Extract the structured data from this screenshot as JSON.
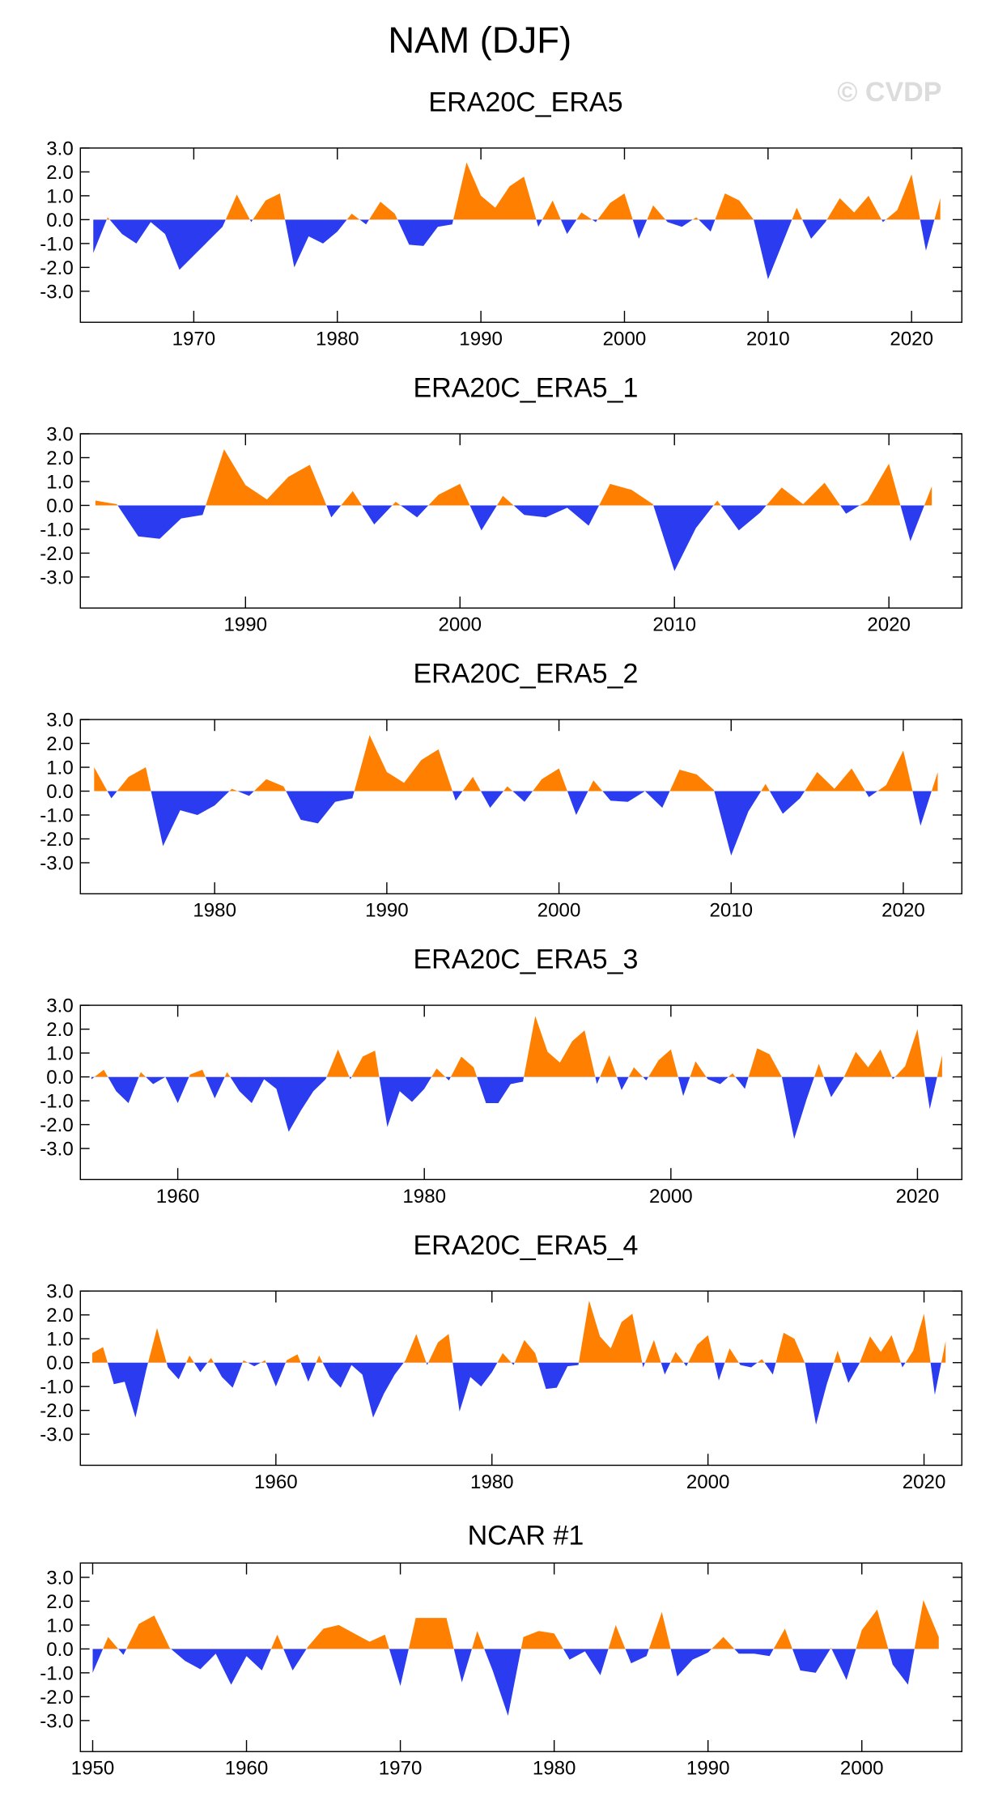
{
  "title": "NAM (DJF)",
  "watermark": "© CVDP",
  "chart_data": [
    {
      "type": "area",
      "title": "ERA20C_ERA5",
      "above_color": "#ff8000",
      "below_color": "#2b3cf0",
      "x": [
        1963,
        1964,
        1965,
        1966,
        1967,
        1968,
        1969,
        1970,
        1971,
        1972,
        1973,
        1974,
        1975,
        1976,
        1977,
        1978,
        1979,
        1980,
        1981,
        1982,
        1983,
        1984,
        1985,
        1986,
        1987,
        1988,
        1989,
        1990,
        1991,
        1992,
        1993,
        1994,
        1995,
        1996,
        1997,
        1998,
        1999,
        2000,
        2001,
        2002,
        2003,
        2004,
        2005,
        2006,
        2007,
        2008,
        2009,
        2010,
        2011,
        2012,
        2013,
        2014,
        2015,
        2016,
        2017,
        2018,
        2019,
        2020,
        2021,
        2022
      ],
      "values": [
        -1.4,
        0.1,
        -0.6,
        -1.0,
        -0.1,
        -0.6,
        -2.1,
        -1.5,
        -0.9,
        -0.3,
        1.05,
        -0.1,
        0.8,
        1.1,
        -2.0,
        -0.7,
        -1.0,
        -0.5,
        0.25,
        -0.2,
        0.75,
        0.25,
        -1.05,
        -1.1,
        -0.3,
        -0.2,
        2.4,
        1.0,
        0.5,
        1.4,
        1.8,
        -0.3,
        0.8,
        -0.6,
        0.3,
        -0.1,
        0.7,
        1.1,
        -0.8,
        0.6,
        -0.1,
        -0.3,
        0.1,
        -0.5,
        1.1,
        0.8,
        0.0,
        -2.5,
        -1.0,
        0.5,
        -0.8,
        -0.1,
        0.9,
        0.3,
        1.0,
        -0.1,
        0.4,
        1.9,
        -1.3,
        0.9
      ],
      "xlim": [
        1962.1,
        2023.5
      ],
      "xticks": [
        1970,
        1980,
        1990,
        2000,
        2010,
        2020
      ],
      "ylim": [
        -4.3,
        3.0
      ],
      "yticks": [
        {
          "value": 3,
          "label": "3.0"
        },
        {
          "value": 2,
          "label": "2.0"
        },
        {
          "value": 1,
          "label": "1.0"
        },
        {
          "value": 0,
          "label": "0.0"
        },
        {
          "value": -1,
          "label": "-1.0"
        },
        {
          "value": -2,
          "label": "-2.0"
        },
        {
          "value": -3,
          "label": "-3.0"
        }
      ]
    },
    {
      "type": "area",
      "title": "ERA20C_ERA5_1",
      "above_color": "#ff8000",
      "below_color": "#2b3cf0",
      "x": [
        1983,
        1984,
        1985,
        1986,
        1987,
        1988,
        1989,
        1990,
        1991,
        1992,
        1993,
        1994,
        1995,
        1996,
        1997,
        1998,
        1999,
        2000,
        2001,
        2002,
        2003,
        2004,
        2005,
        2006,
        2007,
        2008,
        2009,
        2010,
        2011,
        2012,
        2013,
        2014,
        2015,
        2016,
        2017,
        2018,
        2019,
        2020,
        2021,
        2022
      ],
      "values": [
        0.2,
        0.05,
        -1.3,
        -1.4,
        -0.55,
        -0.4,
        2.35,
        0.85,
        0.25,
        1.2,
        1.7,
        -0.5,
        0.6,
        -0.8,
        0.15,
        -0.5,
        0.45,
        0.9,
        -1.05,
        0.4,
        -0.4,
        -0.5,
        -0.1,
        -0.85,
        0.9,
        0.65,
        0.05,
        -2.75,
        -0.95,
        0.2,
        -1.05,
        -0.3,
        0.75,
        0.05,
        0.95,
        -0.35,
        0.2,
        1.75,
        -1.5,
        0.8
      ],
      "xlim": [
        1982.3,
        2023.4
      ],
      "xticks": [
        1990,
        2000,
        2010,
        2020
      ],
      "ylim": [
        -4.3,
        3.0
      ],
      "yticks": [
        {
          "value": 3,
          "label": "3.0"
        },
        {
          "value": 2,
          "label": "2.0"
        },
        {
          "value": 1,
          "label": "1.0"
        },
        {
          "value": 0,
          "label": "0.0"
        },
        {
          "value": -1,
          "label": "-1.0"
        },
        {
          "value": -2,
          "label": "-2.0"
        },
        {
          "value": -3,
          "label": "-3.0"
        }
      ]
    },
    {
      "type": "area",
      "title": "ERA20C_ERA5_2",
      "above_color": "#ff8000",
      "below_color": "#2b3cf0",
      "x": [
        1973,
        1974,
        1975,
        1976,
        1977,
        1978,
        1979,
        1980,
        1981,
        1982,
        1983,
        1984,
        1985,
        1986,
        1987,
        1988,
        1989,
        1990,
        1991,
        1992,
        1993,
        1994,
        1995,
        1996,
        1997,
        1998,
        1999,
        2000,
        2001,
        2002,
        2003,
        2004,
        2005,
        2006,
        2007,
        2008,
        2009,
        2010,
        2011,
        2012,
        2013,
        2014,
        2015,
        2016,
        2017,
        2018,
        2019,
        2020,
        2021,
        2022
      ],
      "values": [
        1.0,
        -0.3,
        0.6,
        1.0,
        -2.3,
        -0.8,
        -1.0,
        -0.6,
        0.1,
        -0.2,
        0.5,
        0.2,
        -1.2,
        -1.35,
        -0.45,
        -0.3,
        2.35,
        0.8,
        0.35,
        1.3,
        1.75,
        -0.4,
        0.6,
        -0.7,
        0.2,
        -0.45,
        0.5,
        0.95,
        -1.0,
        0.45,
        -0.4,
        -0.45,
        0.0,
        -0.7,
        0.9,
        0.7,
        0.05,
        -2.7,
        -0.85,
        0.3,
        -0.95,
        -0.3,
        0.8,
        0.1,
        0.95,
        -0.25,
        0.25,
        1.7,
        -1.45,
        0.8
      ],
      "xlim": [
        1972.2,
        2023.4
      ],
      "xticks": [
        1980,
        1990,
        2000,
        2010,
        2020
      ],
      "ylim": [
        -4.3,
        3.0
      ],
      "yticks": [
        {
          "value": 3,
          "label": "3.0"
        },
        {
          "value": 2,
          "label": "2.0"
        },
        {
          "value": 1,
          "label": "1.0"
        },
        {
          "value": 0,
          "label": "0.0"
        },
        {
          "value": -1,
          "label": "-1.0"
        },
        {
          "value": -2,
          "label": "-2.0"
        },
        {
          "value": -3,
          "label": "-3.0"
        }
      ]
    },
    {
      "type": "area",
      "title": "ERA20C_ERA5_3",
      "above_color": "#ff8000",
      "below_color": "#2b3cf0",
      "x": [
        1953,
        1954,
        1955,
        1956,
        1957,
        1958,
        1959,
        1960,
        1961,
        1962,
        1963,
        1964,
        1965,
        1966,
        1967,
        1968,
        1969,
        1970,
        1971,
        1972,
        1973,
        1974,
        1975,
        1976,
        1977,
        1978,
        1979,
        1980,
        1981,
        1982,
        1983,
        1984,
        1985,
        1986,
        1987,
        1988,
        1989,
        1990,
        1991,
        1992,
        1993,
        1994,
        1995,
        1996,
        1997,
        1998,
        1999,
        2000,
        2001,
        2002,
        2003,
        2004,
        2005,
        2006,
        2007,
        2008,
        2009,
        2010,
        2011,
        2012,
        2013,
        2014,
        2015,
        2016,
        2017,
        2018,
        2019,
        2020,
        2021,
        2022
      ],
      "values": [
        -0.1,
        0.3,
        -0.6,
        -1.1,
        0.2,
        -0.3,
        0.0,
        -1.1,
        0.1,
        0.3,
        -0.9,
        0.2,
        -0.6,
        -1.1,
        -0.1,
        -0.5,
        -2.3,
        -1.4,
        -0.6,
        -0.1,
        1.15,
        -0.1,
        0.85,
        1.1,
        -2.1,
        -0.6,
        -1.05,
        -0.5,
        0.35,
        -0.15,
        0.85,
        0.4,
        -1.1,
        -1.1,
        -0.3,
        -0.2,
        2.55,
        1.05,
        0.6,
        1.5,
        1.95,
        -0.3,
        0.9,
        -0.55,
        0.4,
        -0.15,
        0.7,
        1.15,
        -0.8,
        0.65,
        -0.1,
        -0.3,
        0.15,
        -0.5,
        1.2,
        0.95,
        0.0,
        -2.6,
        -0.95,
        0.55,
        -0.85,
        -0.05,
        1.05,
        0.4,
        1.15,
        -0.1,
        0.45,
        2.0,
        -1.35,
        0.9
      ],
      "xlim": [
        1952.1,
        2023.6
      ],
      "xticks": [
        1960,
        1980,
        2000,
        2020
      ],
      "ylim": [
        -4.3,
        3.0
      ],
      "yticks": [
        {
          "value": 3,
          "label": "3.0"
        },
        {
          "value": 2,
          "label": "2.0"
        },
        {
          "value": 1,
          "label": "1.0"
        },
        {
          "value": 0,
          "label": "0.0"
        },
        {
          "value": -1,
          "label": "-1.0"
        },
        {
          "value": -2,
          "label": "-2.0"
        },
        {
          "value": -3,
          "label": "-3.0"
        }
      ]
    },
    {
      "type": "area",
      "title": "ERA20C_ERA5_4",
      "above_color": "#ff8000",
      "below_color": "#2b3cf0",
      "x": [
        1943,
        1944,
        1945,
        1946,
        1947,
        1948,
        1949,
        1950,
        1951,
        1952,
        1953,
        1954,
        1955,
        1956,
        1957,
        1958,
        1959,
        1960,
        1961,
        1962,
        1963,
        1964,
        1965,
        1966,
        1967,
        1968,
        1969,
        1970,
        1971,
        1972,
        1973,
        1974,
        1975,
        1976,
        1977,
        1978,
        1979,
        1980,
        1981,
        1982,
        1983,
        1984,
        1985,
        1986,
        1987,
        1988,
        1989,
        1990,
        1991,
        1992,
        1993,
        1994,
        1995,
        1996,
        1997,
        1998,
        1999,
        2000,
        2001,
        2002,
        2003,
        2004,
        2005,
        2006,
        2007,
        2008,
        2009,
        2010,
        2011,
        2012,
        2013,
        2014,
        2015,
        2016,
        2017,
        2018,
        2019,
        2020,
        2021,
        2022
      ],
      "values": [
        0.4,
        0.65,
        -0.9,
        -0.8,
        -2.3,
        -0.3,
        1.45,
        -0.2,
        -0.7,
        0.3,
        -0.4,
        0.2,
        -0.6,
        -1.05,
        0.1,
        -0.15,
        0.1,
        -1.0,
        0.1,
        0.35,
        -0.8,
        0.3,
        -0.6,
        -1.05,
        -0.1,
        -0.5,
        -2.3,
        -1.3,
        -0.5,
        0.1,
        1.2,
        -0.1,
        0.85,
        1.2,
        -2.05,
        -0.6,
        -1.0,
        -0.4,
        0.4,
        -0.1,
        0.95,
        0.4,
        -1.1,
        -1.05,
        -0.15,
        -0.1,
        2.6,
        1.1,
        0.6,
        1.7,
        2.05,
        -0.2,
        0.95,
        -0.5,
        0.45,
        -0.15,
        0.75,
        1.15,
        -0.75,
        0.6,
        -0.1,
        -0.2,
        0.15,
        -0.5,
        1.25,
        1.0,
        -0.05,
        -2.6,
        -0.9,
        0.5,
        -0.85,
        -0.05,
        1.1,
        0.45,
        1.15,
        -0.2,
        0.5,
        2.05,
        -1.35,
        0.9
      ],
      "xlim": [
        1941.9,
        2023.5
      ],
      "xticks": [
        1960,
        1980,
        2000,
        2020
      ],
      "ylim": [
        -4.3,
        3.0
      ],
      "yticks": [
        {
          "value": 3,
          "label": "3.0"
        },
        {
          "value": 2,
          "label": "2.0"
        },
        {
          "value": 1,
          "label": "1.0"
        },
        {
          "value": 0,
          "label": "0.0"
        },
        {
          "value": -1,
          "label": "-1.0"
        },
        {
          "value": -2,
          "label": "-2.0"
        },
        {
          "value": -3,
          "label": "-3.0"
        }
      ]
    },
    {
      "type": "area",
      "title": "NCAR #1",
      "above_color": "#ff8000",
      "below_color": "#2b3cf0",
      "x": [
        1950,
        1951,
        1952,
        1953,
        1954,
        1955,
        1956,
        1957,
        1958,
        1959,
        1960,
        1961,
        1962,
        1963,
        1964,
        1965,
        1966,
        1967,
        1968,
        1969,
        1970,
        1971,
        1972,
        1973,
        1974,
        1975,
        1976,
        1977,
        1978,
        1979,
        1980,
        1981,
        1982,
        1983,
        1984,
        1985,
        1986,
        1987,
        1988,
        1989,
        1990,
        1991,
        1992,
        1993,
        1994,
        1995,
        1996,
        1997,
        1998,
        1999,
        2000,
        2001,
        2002,
        2003,
        2004,
        2005
      ],
      "values": [
        -1.0,
        0.5,
        -0.25,
        1.05,
        1.4,
        0.05,
        -0.5,
        -0.85,
        -0.2,
        -1.5,
        -0.3,
        -0.9,
        0.6,
        -0.9,
        0.1,
        0.85,
        1.0,
        0.65,
        0.3,
        0.6,
        -1.55,
        1.3,
        1.3,
        1.3,
        -1.4,
        0.75,
        -0.9,
        -2.8,
        0.5,
        0.75,
        0.65,
        -0.45,
        -0.1,
        -1.1,
        1.0,
        -0.6,
        -0.3,
        1.55,
        -1.15,
        -0.45,
        -0.15,
        0.5,
        -0.2,
        -0.2,
        -0.3,
        0.85,
        -0.9,
        -1.0,
        0.05,
        -1.3,
        0.8,
        1.65,
        -0.65,
        -1.5,
        2.05,
        0.5
      ],
      "xlim": [
        1949.2,
        2006.5
      ],
      "xticks": [
        1950,
        1960,
        1970,
        1980,
        1990,
        2000
      ],
      "ylim": [
        -4.3,
        3.6
      ],
      "yticks": [
        {
          "value": 3,
          "label": "3.0"
        },
        {
          "value": 2,
          "label": "2.0"
        },
        {
          "value": 1,
          "label": "1.0"
        },
        {
          "value": 0,
          "label": "0.0"
        },
        {
          "value": -1,
          "label": "-1.0"
        },
        {
          "value": -2,
          "label": "-2.0"
        },
        {
          "value": -3,
          "label": "-3.0"
        }
      ]
    }
  ]
}
